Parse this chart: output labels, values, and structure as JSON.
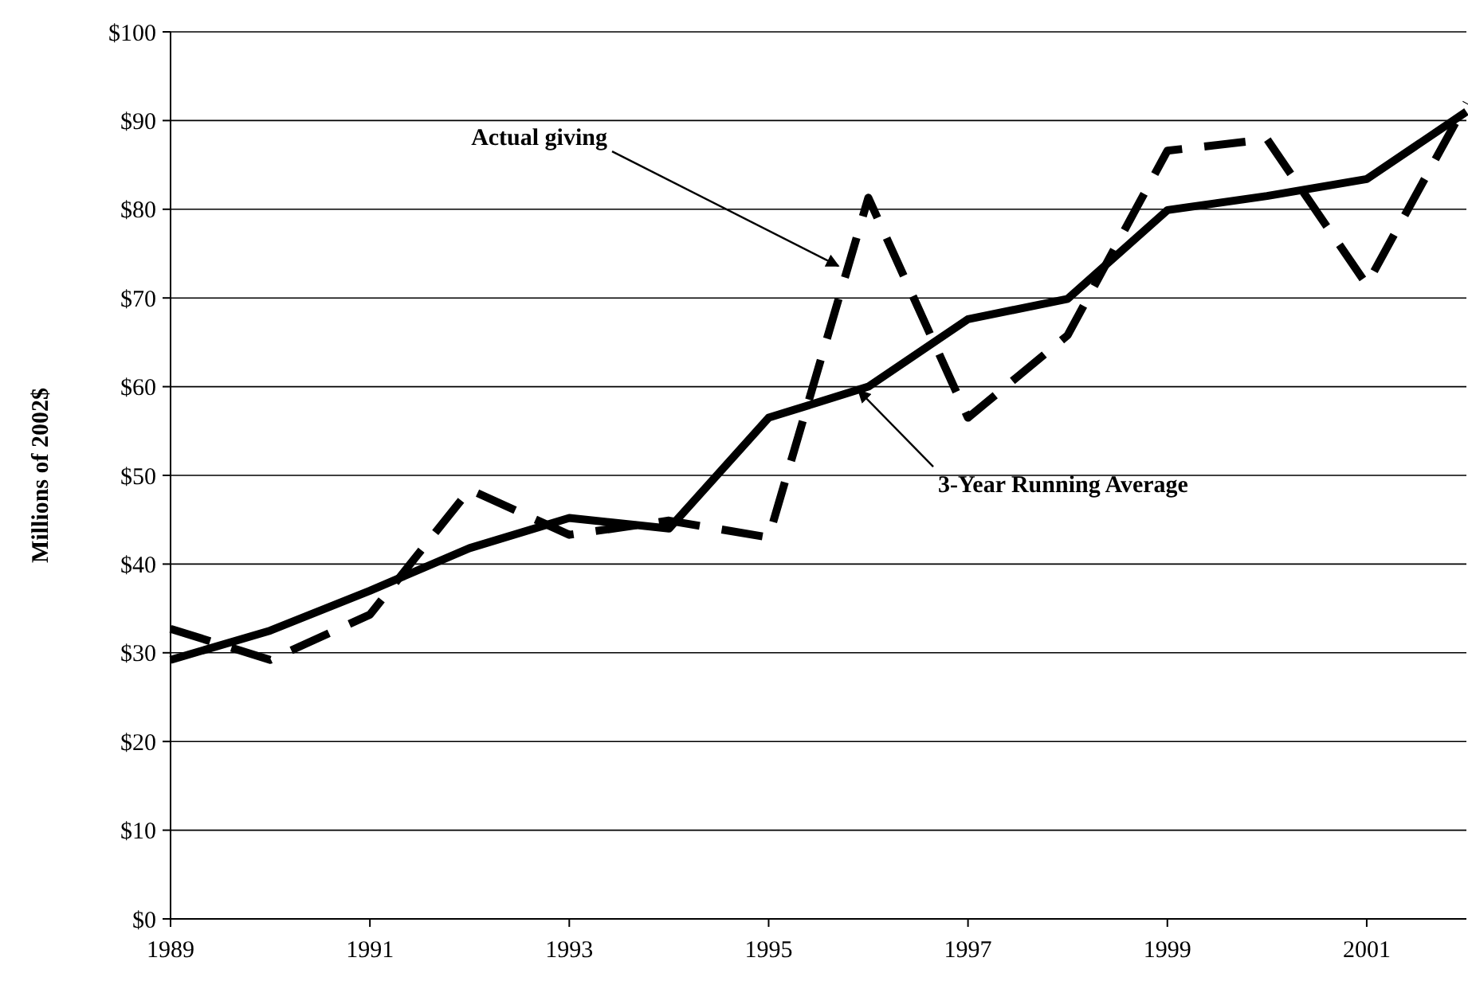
{
  "chart_data": {
    "type": "line",
    "ylabel": "Millions of 2002$",
    "x": [
      1989,
      1990,
      1991,
      1992,
      1993,
      1994,
      1995,
      1996,
      1997,
      1998,
      1999,
      2000,
      2001,
      2002
    ],
    "series": [
      {
        "color": "#000000",
        "line_style": "dashed",
        "values": [
          32.7,
          29.2,
          34.3,
          48.4,
          43.3,
          44.9,
          43,
          81.3,
          56.5,
          65.8,
          86.6,
          87.9,
          71.5,
          92
        ]
      },
      {
        "color": "#000000",
        "line_style": "solid",
        "values": [
          29.2,
          32.5,
          37,
          41.8,
          45.2,
          44,
          56.5,
          60,
          67.6,
          69.9,
          79.9,
          81.5,
          83.4,
          91
        ]
      }
    ],
    "xlim": [
      1989,
      2002
    ],
    "ylim": [
      0,
      100
    ],
    "xticks": [
      1989,
      1991,
      1993,
      1995,
      1997,
      1999,
      2001
    ],
    "yticks": [
      {
        "value": 0,
        "label": "$0"
      },
      {
        "value": 10,
        "label": "$10"
      },
      {
        "value": 20,
        "label": "$20"
      },
      {
        "value": 30,
        "label": "$30"
      },
      {
        "value": 40,
        "label": "$40"
      },
      {
        "value": 50,
        "label": "$50"
      },
      {
        "value": 60,
        "label": "$60"
      },
      {
        "value": 70,
        "label": "$70"
      },
      {
        "value": 80,
        "label": "$80"
      },
      {
        "value": 90,
        "label": "$90"
      },
      {
        "value": 100,
        "label": "$100"
      }
    ],
    "grid": "y",
    "marker": "none",
    "annotations": [
      {
        "text": "Actual giving",
        "x": 1995.7,
        "y": 73.6
      },
      {
        "text": "3-Year Running Average",
        "x": 1995.9,
        "y": 59.6
      }
    ]
  }
}
